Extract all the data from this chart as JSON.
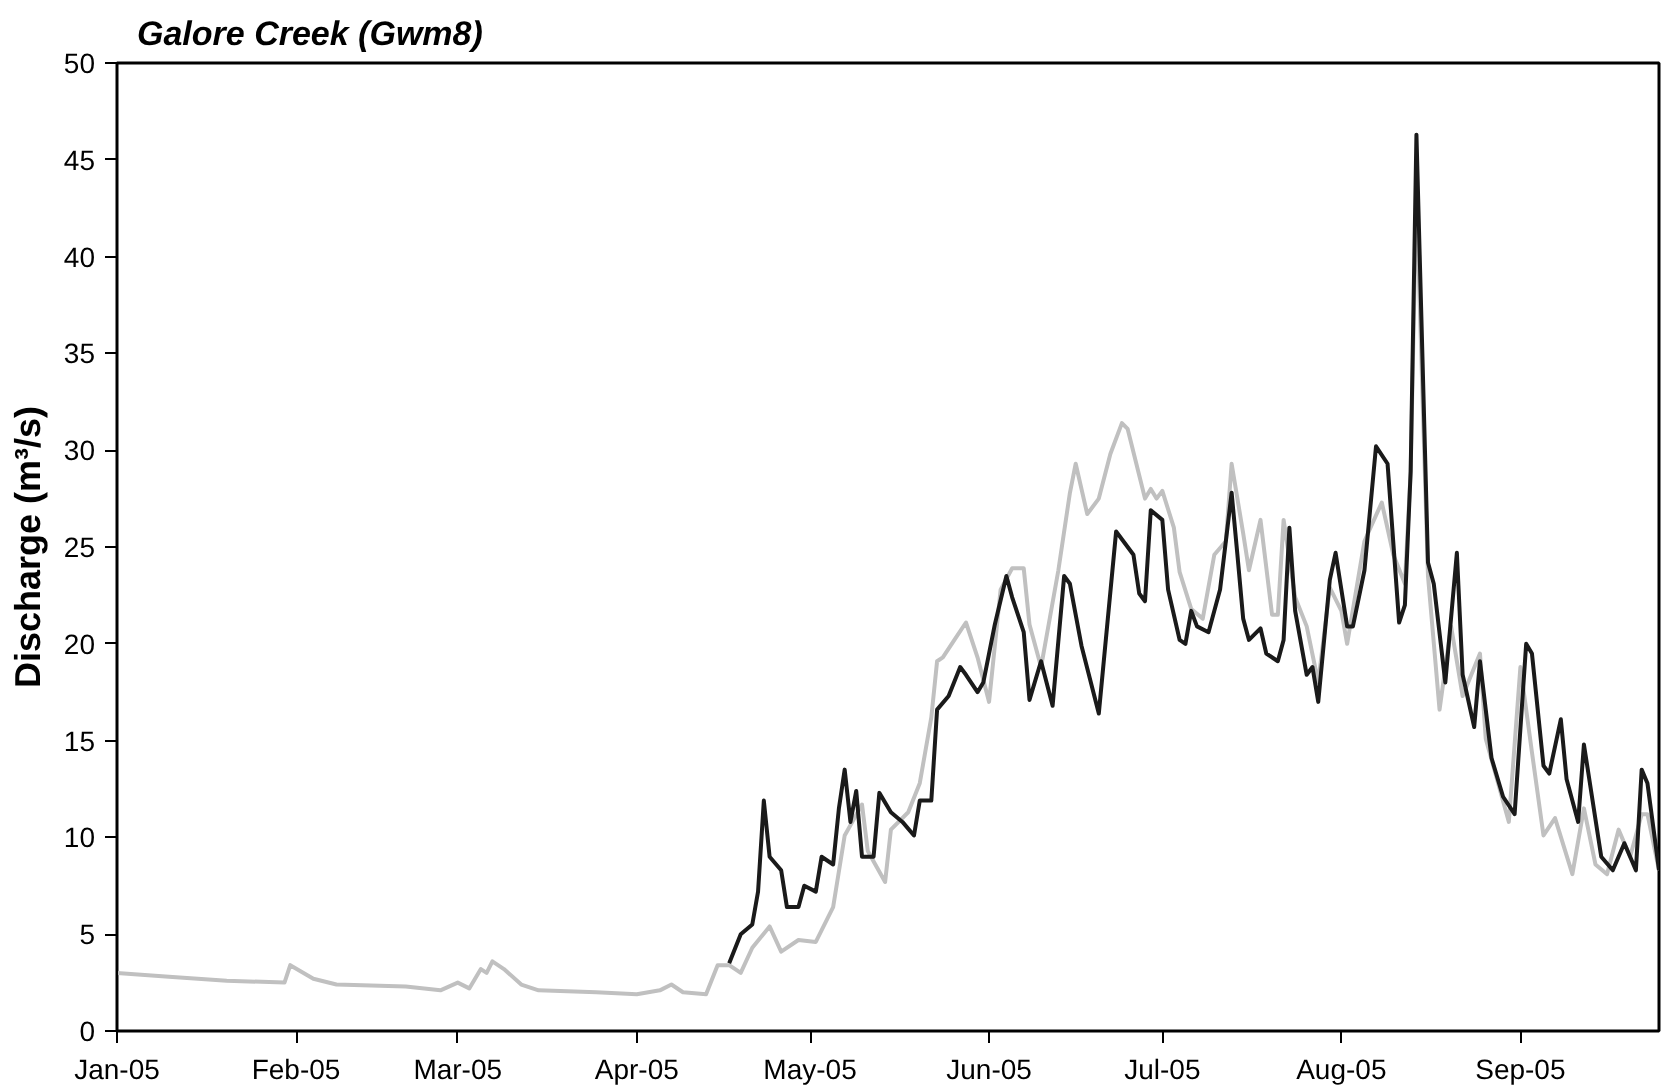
{
  "chart_data": {
    "type": "line",
    "title": "Galore Creek (Gwm8)",
    "ylabel": "Discharge (m³/s)",
    "xlim": [
      "2005-01-01",
      "2005-09-25"
    ],
    "xticks": [
      {
        "value": "2005-01-01",
        "label": "Jan-05"
      },
      {
        "value": "2005-02-01",
        "label": "Feb-05"
      },
      {
        "value": "2005-03-01",
        "label": "Mar-05"
      },
      {
        "value": "2005-04-01",
        "label": "Apr-05"
      },
      {
        "value": "2005-05-01",
        "label": "May-05"
      },
      {
        "value": "2005-06-01",
        "label": "Jun-05"
      },
      {
        "value": "2005-07-01",
        "label": "Jul-05"
      },
      {
        "value": "2005-08-01",
        "label": "Aug-05"
      },
      {
        "value": "2005-09-01",
        "label": "Sep-05"
      }
    ],
    "ylim": [
      0,
      50
    ],
    "yticks": [
      0,
      5,
      10,
      15,
      20,
      25,
      30,
      35,
      40,
      45,
      50
    ],
    "grid": false,
    "marker": "none",
    "line_style": "solid",
    "series": [
      {
        "color": "#c0c0c0",
        "x": [
          "2005-01-01",
          "2005-01-10",
          "2005-01-20",
          "2005-01-30",
          "2005-01-31",
          "2005-02-04",
          "2005-02-08",
          "2005-02-20",
          "2005-02-26",
          "2005-03-01",
          "2005-03-03",
          "2005-03-05",
          "2005-03-06",
          "2005-03-07",
          "2005-03-09",
          "2005-03-12",
          "2005-03-15",
          "2005-03-25",
          "2005-04-01",
          "2005-04-05",
          "2005-04-07",
          "2005-04-09",
          "2005-04-13",
          "2005-04-15",
          "2005-04-17",
          "2005-04-19",
          "2005-04-21",
          "2005-04-24",
          "2005-04-26",
          "2005-04-29",
          "2005-05-02",
          "2005-05-05",
          "2005-05-07",
          "2005-05-10",
          "2005-05-11",
          "2005-05-14",
          "2005-05-15",
          "2005-05-18",
          "2005-05-20",
          "2005-05-22",
          "2005-05-23",
          "2005-05-24",
          "2005-05-26",
          "2005-05-28",
          "2005-05-30",
          "2005-06-01",
          "2005-06-03",
          "2005-06-05",
          "2005-06-07",
          "2005-06-08",
          "2005-06-10",
          "2005-06-13",
          "2005-06-15",
          "2005-06-16",
          "2005-06-18",
          "2005-06-20",
          "2005-06-22",
          "2005-06-24",
          "2005-06-25",
          "2005-06-28",
          "2005-06-29",
          "2005-06-30",
          "2005-07-01",
          "2005-07-03",
          "2005-07-04",
          "2005-07-06",
          "2005-07-08",
          "2005-07-10",
          "2005-07-12",
          "2005-07-13",
          "2005-07-15",
          "2005-07-16",
          "2005-07-18",
          "2005-07-20",
          "2005-07-21",
          "2005-07-22",
          "2005-07-24",
          "2005-07-26",
          "2005-07-28",
          "2005-07-30",
          "2005-08-01",
          "2005-08-02",
          "2005-08-05",
          "2005-08-08",
          "2005-08-10",
          "2005-08-12",
          "2005-08-13",
          "2005-08-14",
          "2005-08-15",
          "2005-08-16",
          "2005-08-18",
          "2005-08-20",
          "2005-08-22",
          "2005-08-25",
          "2005-08-26",
          "2005-08-30",
          "2005-09-01",
          "2005-09-03",
          "2005-09-05",
          "2005-09-07",
          "2005-09-10",
          "2005-09-12",
          "2005-09-14",
          "2005-09-16",
          "2005-09-18",
          "2005-09-20",
          "2005-09-22",
          "2005-09-23",
          "2005-09-25"
        ],
        "values": [
          3.0,
          2.8,
          2.6,
          2.5,
          3.4,
          2.7,
          2.4,
          2.3,
          2.1,
          2.5,
          2.2,
          3.2,
          3.0,
          3.6,
          3.2,
          2.4,
          2.1,
          2.0,
          1.9,
          2.1,
          2.4,
          2.0,
          1.9,
          3.4,
          3.4,
          3.0,
          4.3,
          5.4,
          4.1,
          4.7,
          4.6,
          6.4,
          10.1,
          11.7,
          9.3,
          7.7,
          10.4,
          11.3,
          12.8,
          16.2,
          19.1,
          19.3,
          20.2,
          21.1,
          19.3,
          17.0,
          22.8,
          23.9,
          23.9,
          21.0,
          18.8,
          23.8,
          27.8,
          29.3,
          26.7,
          27.5,
          29.8,
          31.4,
          31.1,
          27.5,
          28.0,
          27.5,
          27.9,
          26.0,
          23.7,
          21.8,
          21.3,
          24.6,
          25.3,
          29.3,
          25.7,
          23.8,
          26.4,
          21.5,
          21.5,
          26.4,
          22.4,
          20.9,
          18.0,
          22.9,
          21.7,
          20.0,
          25.3,
          27.3,
          24.6,
          23.1,
          28.9,
          43.4,
          33.3,
          23.5,
          16.6,
          20.9,
          17.3,
          19.5,
          15.1,
          10.8,
          18.8,
          14.4,
          10.1,
          11.0,
          8.1,
          11.5,
          8.6,
          8.1,
          10.4,
          9.0,
          11.2,
          11.2,
          8.3
        ]
      },
      {
        "color": "#1a1a1a",
        "x": [
          "2005-04-17",
          "2005-04-19",
          "2005-04-21",
          "2005-04-22",
          "2005-04-23",
          "2005-04-24",
          "2005-04-26",
          "2005-04-27",
          "2005-04-29",
          "2005-04-30",
          "2005-05-02",
          "2005-05-03",
          "2005-05-05",
          "2005-05-06",
          "2005-05-07",
          "2005-05-08",
          "2005-05-09",
          "2005-05-10",
          "2005-05-12",
          "2005-05-13",
          "2005-05-15",
          "2005-05-17",
          "2005-05-19",
          "2005-05-20",
          "2005-05-22",
          "2005-05-23",
          "2005-05-25",
          "2005-05-27",
          "2005-05-28",
          "2005-05-30",
          "2005-05-31",
          "2005-06-02",
          "2005-06-04",
          "2005-06-05",
          "2005-06-07",
          "2005-06-08",
          "2005-06-10",
          "2005-06-12",
          "2005-06-14",
          "2005-06-15",
          "2005-06-17",
          "2005-06-20",
          "2005-06-23",
          "2005-06-26",
          "2005-06-27",
          "2005-06-28",
          "2005-06-29",
          "2005-07-01",
          "2005-07-02",
          "2005-07-04",
          "2005-07-05",
          "2005-07-06",
          "2005-07-07",
          "2005-07-09",
          "2005-07-11",
          "2005-07-13",
          "2005-07-14",
          "2005-07-15",
          "2005-07-16",
          "2005-07-18",
          "2005-07-19",
          "2005-07-21",
          "2005-07-22",
          "2005-07-23",
          "2005-07-24",
          "2005-07-26",
          "2005-07-27",
          "2005-07-28",
          "2005-07-30",
          "2005-07-31",
          "2005-08-02",
          "2005-08-03",
          "2005-08-05",
          "2005-08-07",
          "2005-08-09",
          "2005-08-11",
          "2005-08-12",
          "2005-08-13",
          "2005-08-14",
          "2005-08-16",
          "2005-08-17",
          "2005-08-19",
          "2005-08-21",
          "2005-08-22",
          "2005-08-24",
          "2005-08-25",
          "2005-08-27",
          "2005-08-29",
          "2005-08-31",
          "2005-09-02",
          "2005-09-03",
          "2005-09-05",
          "2005-09-06",
          "2005-09-08",
          "2005-09-09",
          "2005-09-11",
          "2005-09-12",
          "2005-09-15",
          "2005-09-17",
          "2005-09-19",
          "2005-09-21",
          "2005-09-22",
          "2005-09-23",
          "2005-09-25"
        ],
        "values": [
          3.5,
          5.0,
          5.5,
          7.2,
          11.9,
          9.0,
          8.3,
          6.4,
          6.4,
          7.5,
          7.2,
          9.0,
          8.6,
          11.5,
          13.5,
          10.8,
          12.4,
          9.0,
          9.0,
          12.3,
          11.3,
          10.8,
          10.1,
          11.9,
          11.9,
          16.6,
          17.3,
          18.8,
          18.4,
          17.5,
          18.0,
          21.0,
          23.5,
          22.4,
          20.6,
          17.1,
          19.1,
          16.8,
          23.5,
          23.1,
          19.9,
          16.4,
          25.8,
          24.6,
          22.6,
          22.2,
          26.9,
          26.4,
          22.8,
          20.2,
          20.0,
          21.7,
          20.9,
          20.6,
          22.8,
          27.8,
          24.6,
          21.3,
          20.2,
          20.8,
          19.5,
          19.1,
          20.2,
          26.0,
          21.7,
          18.4,
          18.8,
          17.0,
          23.3,
          24.7,
          20.9,
          20.9,
          23.8,
          30.2,
          29.3,
          21.1,
          22.0,
          28.9,
          46.3,
          24.2,
          23.1,
          18.0,
          24.7,
          18.4,
          15.7,
          19.1,
          14.1,
          12.1,
          11.2,
          20.0,
          19.5,
          13.7,
          13.3,
          16.1,
          13.0,
          10.8,
          14.8,
          9.0,
          8.3,
          9.7,
          8.3,
          13.5,
          12.8,
          8.3
        ]
      }
    ]
  }
}
